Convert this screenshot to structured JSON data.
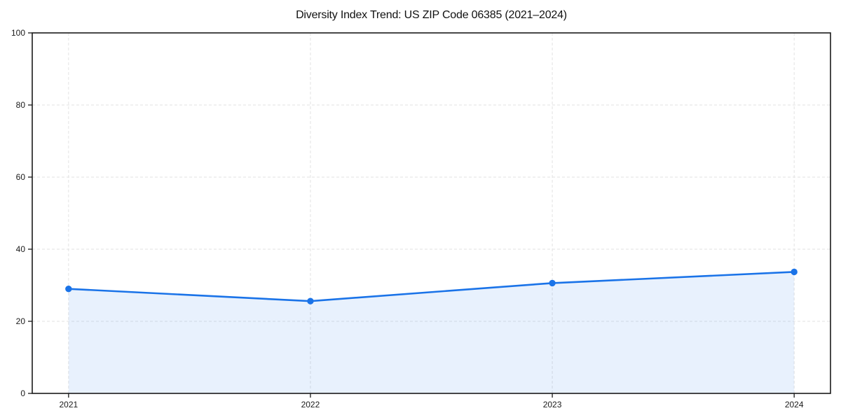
{
  "chart_data": {
    "type": "area",
    "title": "Diversity Index Trend: US ZIP Code 06385 (2021–2024)",
    "categories": [
      "2021",
      "2022",
      "2023",
      "2024"
    ],
    "series": [
      {
        "name": "Diversity Index",
        "values": [
          29.0,
          25.6,
          30.6,
          33.7
        ]
      }
    ],
    "xlabel": "",
    "ylabel": "",
    "ylim": [
      0,
      100
    ],
    "yticks": [
      0,
      20,
      40,
      60,
      80,
      100
    ],
    "grid": true,
    "grid_style": "dashed",
    "legend_position": "none",
    "marker_style": "circle",
    "colors": {
      "line": "#1a73e8",
      "marker": "#1a73e8",
      "area_fill": "#1a73e8",
      "area_opacity": 0.1,
      "grid": "#e2e2e2",
      "axis": "#1a1a1a",
      "tick_label": "#1a1a1a",
      "title": "#111111",
      "background": "#ffffff"
    }
  }
}
